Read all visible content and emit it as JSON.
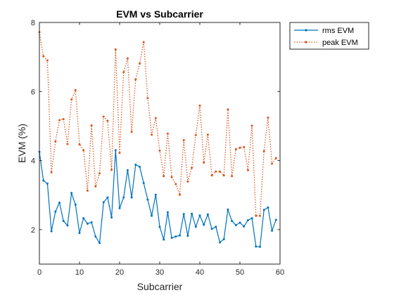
{
  "chart_data": {
    "type": "line",
    "title": "EVM vs Subcarrier",
    "xlabel": "Subcarrier",
    "ylabel": "EVM (%)",
    "xlim": [
      0,
      60
    ],
    "ylim": [
      1,
      8
    ],
    "xticks": [
      0,
      10,
      20,
      30,
      40,
      50,
      60
    ],
    "yticks": [
      2,
      4,
      6,
      8
    ],
    "grid": false,
    "legend_position": "outside-top-right",
    "x": [
      0,
      1,
      2,
      3,
      4,
      5,
      6,
      7,
      8,
      9,
      10,
      11,
      12,
      13,
      14,
      15,
      16,
      17,
      18,
      19,
      20,
      21,
      22,
      23,
      24,
      25,
      26,
      27,
      28,
      29,
      30,
      31,
      32,
      33,
      34,
      35,
      36,
      37,
      38,
      39,
      40,
      41,
      42,
      43,
      44,
      45,
      46,
      47,
      48,
      49,
      50,
      51,
      52,
      53,
      54,
      55,
      56,
      57,
      58,
      59
    ],
    "series": [
      {
        "name": "rms EVM",
        "color": "#0072BD",
        "style": "solid",
        "values": [
          4.25,
          3.42,
          3.33,
          1.95,
          2.52,
          2.78,
          2.25,
          2.12,
          3.06,
          2.72,
          1.9,
          2.33,
          2.17,
          2.21,
          1.8,
          1.61,
          2.79,
          2.93,
          2.35,
          4.3,
          2.62,
          2.93,
          3.72,
          2.93,
          3.88,
          3.82,
          3.35,
          2.87,
          2.4,
          3.01,
          2.08,
          1.71,
          2.5,
          1.76,
          1.8,
          1.83,
          2.45,
          1.82,
          2.46,
          2.08,
          2.41,
          2.14,
          2.44,
          2.02,
          2.08,
          1.63,
          1.72,
          2.58,
          2.25,
          2.13,
          2.2,
          2.09,
          2.27,
          2.33,
          1.51,
          1.5,
          2.57,
          2.64,
          1.97,
          2.28
        ]
      },
      {
        "name": "peak EVM",
        "color": "#D95319",
        "style": "dotted",
        "values": [
          7.72,
          7.02,
          6.9,
          3.66,
          4.55,
          5.17,
          5.2,
          4.48,
          5.77,
          6.04,
          4.47,
          4.3,
          3.13,
          5.02,
          3.25,
          3.63,
          5.27,
          5.15,
          3.73,
          7.22,
          4.22,
          6.56,
          6.96,
          4.83,
          6.35,
          6.81,
          7.43,
          5.81,
          4.75,
          5.23,
          4.29,
          3.55,
          4.78,
          3.52,
          3.32,
          3.01,
          4.59,
          3.39,
          3.79,
          4.74,
          5.59,
          3.94,
          4.75,
          3.57,
          3.68,
          3.68,
          3.57,
          5.48,
          3.55,
          4.33,
          4.37,
          4.39,
          3.72,
          5.01,
          2.4,
          2.4,
          4.27,
          5.24,
          3.91,
          4.07
        ]
      }
    ]
  }
}
